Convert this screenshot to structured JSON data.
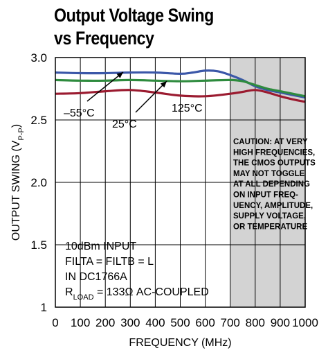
{
  "title_line1": "Output Voltage Swing",
  "title_line2": "vs Frequency",
  "chart_data": {
    "type": "line",
    "title": "Output Voltage Swing vs Frequency",
    "xlabel": "FREQUENCY (MHz)",
    "ylabel": "OUTPUT SWING (V",
    "ylabel_sub": "P-P",
    "ylabel_close": ")",
    "xlim": [
      0,
      1000
    ],
    "ylim": [
      1,
      3
    ],
    "xticks": [
      0,
      100,
      200,
      300,
      400,
      500,
      600,
      700,
      800,
      900,
      1000
    ],
    "yticks": [
      {
        "v": 1,
        "label": "1"
      },
      {
        "v": 1.5,
        "label": "1.5"
      },
      {
        "v": 2,
        "label": "2.0"
      },
      {
        "v": 2.5,
        "label": "2.5"
      },
      {
        "v": 3,
        "label": "3.0"
      }
    ],
    "grid": true,
    "shaded_region": {
      "x_from": 700,
      "x_to": 1000
    },
    "series": [
      {
        "name": "–55°C",
        "color": "#3b57a8",
        "x": [
          0,
          100,
          200,
          300,
          400,
          500,
          550,
          600,
          650,
          700,
          750,
          800,
          850,
          900,
          950,
          1000
        ],
        "y": [
          2.88,
          2.875,
          2.875,
          2.88,
          2.88,
          2.87,
          2.88,
          2.895,
          2.89,
          2.86,
          2.82,
          2.77,
          2.74,
          2.72,
          2.7,
          2.68
        ]
      },
      {
        "name": "25°C",
        "color": "#2e8b3e",
        "x": [
          0,
          100,
          200,
          300,
          400,
          500,
          600,
          700,
          750,
          800,
          850,
          900,
          950,
          1000
        ],
        "y": [
          2.82,
          2.815,
          2.815,
          2.82,
          2.815,
          2.81,
          2.815,
          2.82,
          2.81,
          2.78,
          2.75,
          2.73,
          2.71,
          2.69
        ]
      },
      {
        "name": "125°C",
        "color": "#9b1b30",
        "x": [
          0,
          100,
          200,
          300,
          400,
          500,
          600,
          700,
          750,
          800,
          850,
          900,
          950,
          1000
        ],
        "y": [
          2.71,
          2.715,
          2.73,
          2.74,
          2.72,
          2.695,
          2.69,
          2.71,
          2.725,
          2.74,
          2.72,
          2.69,
          2.665,
          2.645
        ]
      }
    ],
    "annotations": [
      {
        "text": "–55°C"
      },
      {
        "text": "25°C"
      },
      {
        "text": "125°C"
      }
    ],
    "caution_lines": [
      "CAUTION: AT VERY",
      "HIGH FREQUENCIES,",
      "THE CMOS OUTPUTS",
      "MAY NOT TOGGLE",
      "AT ALL DEPENDING",
      "ON INPUT FREQ-",
      "UENCY, AMPLITUDE,",
      "SUPPLY VOLTAGE,",
      "OR TEMPERATURE"
    ],
    "conditions": [
      {
        "text": "10dBm INPUT"
      },
      {
        "text": "FILTA = FILTB = L"
      },
      {
        "text": "IN DC1766A"
      },
      {
        "text": "R",
        "sub": "LOAD",
        "rest": " = 133Ω AC-COUPLED"
      }
    ]
  }
}
